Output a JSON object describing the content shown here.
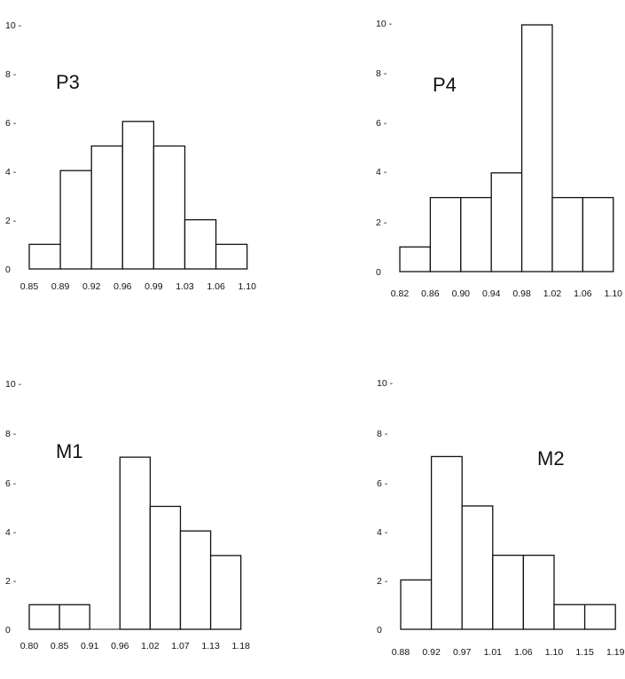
{
  "chart_data": [
    {
      "type": "bar",
      "title": "P3",
      "bin_edges": [
        "0.85",
        "0.89",
        "0.92",
        "0.96",
        "0.99",
        "1.03",
        "1.06",
        "1.10"
      ],
      "values": [
        1,
        4,
        5,
        6,
        5,
        2,
        1
      ],
      "yticks": [
        "0",
        "2",
        "4",
        "6",
        "8",
        "10"
      ],
      "ylim": [
        0,
        10
      ]
    },
    {
      "type": "bar",
      "title": "P4",
      "bin_edges": [
        "0.82",
        "0.86",
        "0.90",
        "0.94",
        "0.98",
        "1.02",
        "1.06",
        "1.10"
      ],
      "values": [
        1,
        3,
        3,
        4,
        10,
        3,
        3
      ],
      "yticks": [
        "0",
        "2",
        "4",
        "6",
        "8",
        "10"
      ],
      "ylim": [
        0,
        10
      ]
    },
    {
      "type": "bar",
      "title": "M1",
      "bin_edges": [
        "0.80",
        "0.85",
        "0.91",
        "0.96",
        "1.02",
        "1.07",
        "1.13",
        "1.18"
      ],
      "values": [
        1,
        1,
        0,
        7,
        5,
        4,
        3
      ],
      "yticks": [
        "0",
        "2",
        "4",
        "6",
        "8",
        "10"
      ],
      "ylim": [
        0,
        10
      ]
    },
    {
      "type": "bar",
      "title": "M2",
      "bin_edges": [
        "0.88",
        "0.92",
        "0.97",
        "1.01",
        "1.06",
        "1.10",
        "1.15",
        "1.19"
      ],
      "values": [
        2,
        7,
        5,
        3,
        3,
        1,
        1
      ],
      "yticks": [
        "0",
        "2",
        "4",
        "6",
        "8",
        "10"
      ],
      "ylim": [
        0,
        10
      ]
    }
  ]
}
